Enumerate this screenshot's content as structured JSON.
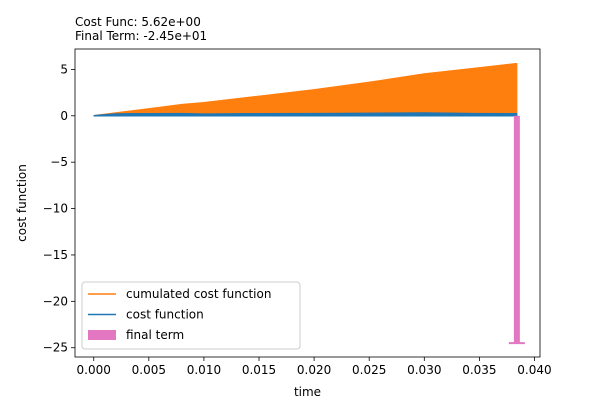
{
  "chart_data": {
    "type": "area",
    "title_lines": [
      "Cost Func: 5.62e+00",
      "Final Term: -2.45e+01"
    ],
    "xlabel": "time",
    "ylabel": "cost function",
    "xlim": [
      -0.0017,
      0.0405
    ],
    "ylim": [
      -26.0,
      7.2
    ],
    "xticks": [
      0.0,
      0.005,
      0.01,
      0.015,
      0.02,
      0.025,
      0.03,
      0.035,
      0.04
    ],
    "xtick_labels": [
      "0.000",
      "0.005",
      "0.010",
      "0.015",
      "0.020",
      "0.025",
      "0.030",
      "0.035",
      "0.040"
    ],
    "yticks": [
      5,
      0,
      -5,
      -10,
      -15,
      -20,
      -25
    ],
    "ytick_labels": [
      "5",
      "0",
      "−5",
      "−10",
      "−15",
      "−20",
      "−25"
    ],
    "grid": false,
    "legend_position": "lower-left",
    "colors": {
      "cumulated": "#ff7f0e",
      "cost": "#1f77b4",
      "final": "#e377c2"
    },
    "series": [
      {
        "name": "cumulated cost function",
        "kind": "filled-line",
        "x": [
          0.0,
          0.003,
          0.006,
          0.008,
          0.01,
          0.015,
          0.02,
          0.025,
          0.03,
          0.0345,
          0.0384
        ],
        "y": [
          0.0,
          0.45,
          0.9,
          1.2,
          1.4,
          2.1,
          2.8,
          3.6,
          4.5,
          5.1,
          5.62
        ]
      },
      {
        "name": "cost function",
        "kind": "filled-line",
        "x": [
          0.0,
          0.002,
          0.005,
          0.008,
          0.01,
          0.015,
          0.02,
          0.025,
          0.03,
          0.0345,
          0.0384
        ],
        "y": [
          0.0,
          0.2,
          0.22,
          0.24,
          0.18,
          0.22,
          0.24,
          0.26,
          0.3,
          0.24,
          0.22
        ]
      },
      {
        "name": "final term",
        "kind": "bar",
        "x": 0.0384,
        "y": -24.5
      }
    ]
  }
}
